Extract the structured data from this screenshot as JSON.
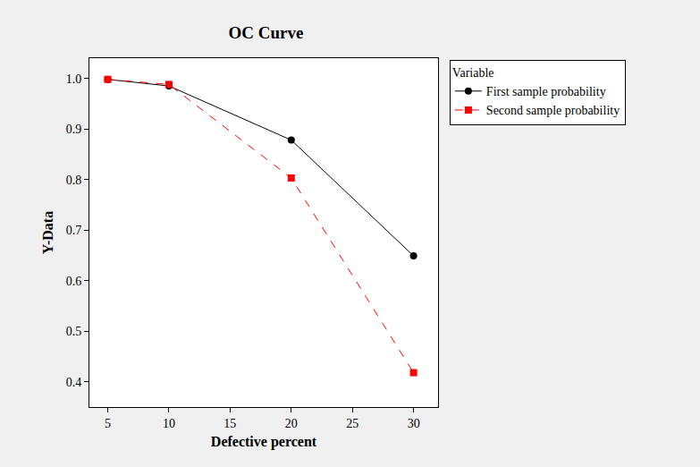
{
  "chart_data": {
    "type": "line",
    "title": "OC Curve",
    "x_label": "Defective percent",
    "y_label": "Y-Data",
    "legend_title": "Variable",
    "x": [
      5,
      10,
      20,
      30
    ],
    "series": [
      {
        "name": "First sample probability",
        "color": "#000000",
        "marker": "circle",
        "line_style": "solid",
        "values": [
          0.998,
          0.985,
          0.878,
          0.649
        ]
      },
      {
        "name": "Second sample probability",
        "color": "#ff0000",
        "marker": "square",
        "line_style": "dash",
        "values": [
          0.998,
          0.988,
          0.803,
          0.418
        ]
      }
    ],
    "xlim": [
      3.5,
      32
    ],
    "xticks": [
      5,
      10,
      15,
      20,
      25,
      30
    ],
    "ylim": [
      0.35,
      1.04
    ],
    "yticks": [
      0.4,
      0.5,
      0.6,
      0.7,
      0.8,
      0.9,
      {
        "value": 1,
        "label": "1.0"
      }
    ],
    "grid": false,
    "legend": "upper right"
  }
}
